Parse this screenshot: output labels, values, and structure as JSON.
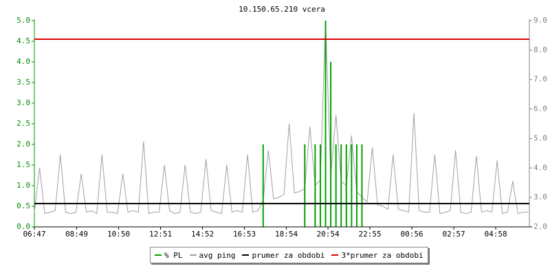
{
  "chart_data": {
    "type": "line",
    "title": "10.150.65.210 vcera",
    "x": [
      0,
      0.25,
      0.5,
      0.75,
      1,
      1.25,
      1.5,
      1.75,
      2,
      2.25,
      2.5,
      2.75,
      3,
      3.25,
      3.5,
      3.75,
      4,
      4.25,
      4.5,
      4.75,
      5,
      5.25,
      5.5,
      5.75,
      6,
      6.25,
      6.5,
      6.75,
      7,
      7.25,
      7.5,
      7.75,
      8,
      8.25,
      8.5,
      8.75,
      9,
      9.25,
      9.5,
      9.75,
      10,
      10.25,
      10.5,
      10.75,
      11,
      11.25,
      11.5,
      11.75,
      12,
      12.25,
      12.5,
      12.75,
      13,
      13.25,
      13.5,
      13.75,
      14,
      14.25,
      14.5,
      14.75,
      15,
      15.25,
      15.5,
      15.75,
      16,
      16.25,
      16.5,
      16.75,
      17,
      17.25,
      17.5,
      17.75,
      18,
      18.25,
      18.5,
      18.75,
      19,
      19.25,
      19.5,
      19.75,
      20,
      20.25,
      20.5,
      20.75,
      21,
      21.25,
      21.5,
      21.75,
      22,
      22.25,
      22.5,
      22.75,
      23,
      23.25,
      23.5,
      23.75
    ],
    "xlim": [
      0,
      23.8
    ],
    "xticks": [
      {
        "value": 0,
        "label": "06:47"
      },
      {
        "value": 2.033,
        "label": "08:49"
      },
      {
        "value": 4.05,
        "label": "10:50"
      },
      {
        "value": 6.067,
        "label": "12:51"
      },
      {
        "value": 8.083,
        "label": "14:52"
      },
      {
        "value": 10.1,
        "label": "16:53"
      },
      {
        "value": 12.117,
        "label": "18:54"
      },
      {
        "value": 14.117,
        "label": "20:54"
      },
      {
        "value": 16.133,
        "label": "22:55"
      },
      {
        "value": 18.15,
        "label": "00:56"
      },
      {
        "value": 20.167,
        "label": "02:57"
      },
      {
        "value": 22.183,
        "label": "04:58"
      }
    ],
    "ylim": [
      0,
      5
    ],
    "yticks": [
      {
        "value": 0,
        "label": "0.0"
      },
      {
        "value": 0.5,
        "label": "0.5"
      },
      {
        "value": 1,
        "label": "1.0"
      },
      {
        "value": 1.5,
        "label": "1.5"
      },
      {
        "value": 2,
        "label": "2.0"
      },
      {
        "value": 2.5,
        "label": "2.5"
      },
      {
        "value": 3,
        "label": "3.0"
      },
      {
        "value": 3.5,
        "label": "3.5"
      },
      {
        "value": 4,
        "label": "4.0"
      },
      {
        "value": 4.5,
        "label": "4.5"
      },
      {
        "value": 5,
        "label": "5.0"
      }
    ],
    "y2lim": [
      2,
      9
    ],
    "y2ticks": [
      {
        "value": 2,
        "label": "2.0"
      },
      {
        "value": 3,
        "label": "3.0"
      },
      {
        "value": 4,
        "label": "4.0"
      },
      {
        "value": 5,
        "label": "5.0"
      },
      {
        "value": 6,
        "label": "6.0"
      },
      {
        "value": 7,
        "label": "7.0"
      },
      {
        "value": 8,
        "label": "8.0"
      },
      {
        "value": 9,
        "label": "9.0"
      }
    ],
    "series": [
      {
        "name": "avg ping",
        "color": "#a0a0a0",
        "axis": "y2",
        "style": "line",
        "values": [
          2.5,
          4.0,
          2.45,
          2.5,
          2.55,
          4.45,
          2.5,
          2.45,
          2.5,
          3.8,
          2.5,
          2.55,
          2.45,
          4.45,
          2.5,
          2.5,
          2.45,
          3.8,
          2.5,
          2.55,
          2.5,
          4.9,
          2.45,
          2.5,
          2.5,
          4.1,
          2.55,
          2.45,
          2.5,
          4.1,
          2.5,
          2.45,
          2.5,
          4.3,
          2.55,
          2.5,
          2.45,
          4.1,
          2.5,
          2.55,
          2.5,
          4.45,
          2.5,
          2.55,
          2.9,
          4.6,
          2.95,
          3.0,
          3.1,
          5.5,
          3.15,
          3.2,
          3.3,
          5.4,
          3.4,
          3.6,
          9.0,
          3.7,
          5.8,
          3.55,
          3.4,
          5.1,
          3.2,
          3.0,
          2.85,
          4.7,
          2.75,
          2.7,
          2.6,
          4.45,
          2.6,
          2.55,
          2.5,
          5.85,
          2.55,
          2.5,
          2.5,
          4.45,
          2.45,
          2.5,
          2.55,
          4.6,
          2.5,
          2.45,
          2.5,
          4.4,
          2.5,
          2.55,
          2.5,
          4.25,
          2.45,
          2.5,
          3.55,
          2.45,
          2.5,
          2.5
        ]
      },
      {
        "name": "% PL",
        "color": "#00a000",
        "axis": "y",
        "style": "impulse",
        "values": [
          0,
          0,
          0,
          0,
          0,
          0,
          0,
          0,
          0,
          0,
          0,
          0,
          0,
          0,
          0,
          0,
          0,
          0,
          0,
          0,
          0,
          0,
          0,
          0,
          0,
          0,
          0,
          0,
          0,
          0,
          0,
          0,
          0,
          0,
          0,
          0,
          0,
          0,
          0,
          0,
          0,
          0,
          0,
          0,
          2.0,
          0,
          0,
          0,
          0,
          0,
          0,
          0,
          2.0,
          0,
          2.0,
          2.0,
          5.0,
          4.0,
          2.0,
          2.0,
          2.0,
          2.0,
          2.0,
          2.0,
          0,
          0,
          0,
          0,
          0,
          0,
          0,
          0,
          0,
          0,
          0,
          0,
          0,
          0,
          0,
          0,
          0,
          0,
          0,
          0,
          0,
          0,
          0,
          0,
          0,
          0,
          0,
          0,
          0,
          0,
          0,
          0
        ]
      }
    ],
    "reference_lines": [
      {
        "name": "prumer za obdobi",
        "color": "#000000",
        "axis": "y2",
        "value": 2.79
      },
      {
        "name": "3*prumer za obdobi",
        "color": "#e00000",
        "axis": "y2",
        "value": 8.37
      }
    ],
    "legend_order": [
      "series.1",
      "series.0",
      "reference_lines.0",
      "reference_lines.1"
    ]
  }
}
